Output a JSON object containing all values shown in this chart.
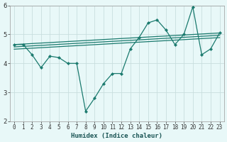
{
  "xlabel": "Humidex (Indice chaleur)",
  "bg_color": "#e8f8f8",
  "plot_bg_color": "#e8f8f8",
  "grid_color": "#c8dede",
  "line_color": "#1a7a6e",
  "xlim": [
    -0.5,
    23.5
  ],
  "ylim": [
    2,
    6
  ],
  "yticks": [
    2,
    3,
    4,
    5,
    6
  ],
  "xticks": [
    0,
    1,
    2,
    3,
    4,
    5,
    6,
    7,
    8,
    9,
    10,
    11,
    12,
    13,
    14,
    15,
    16,
    17,
    18,
    19,
    20,
    21,
    22,
    23
  ],
  "series1_x": [
    0,
    1,
    2,
    3,
    4,
    5,
    6,
    7,
    8,
    9,
    10,
    11,
    12,
    13,
    14,
    15,
    16,
    17,
    18,
    19,
    20,
    21,
    22,
    23
  ],
  "series1_y": [
    4.65,
    4.65,
    4.3,
    3.85,
    4.25,
    4.2,
    4.0,
    4.0,
    2.35,
    2.8,
    3.3,
    3.65,
    3.65,
    4.5,
    4.9,
    5.4,
    5.5,
    5.15,
    4.65,
    5.0,
    5.95,
    4.3,
    4.5,
    5.05
  ],
  "trend1_x": [
    0,
    23
  ],
  "trend1_y": [
    4.65,
    5.05
  ],
  "trend2_x": [
    0,
    23
  ],
  "trend2_y": [
    4.57,
    4.97
  ],
  "trend3_x": [
    0,
    23
  ],
  "trend3_y": [
    4.49,
    4.89
  ]
}
